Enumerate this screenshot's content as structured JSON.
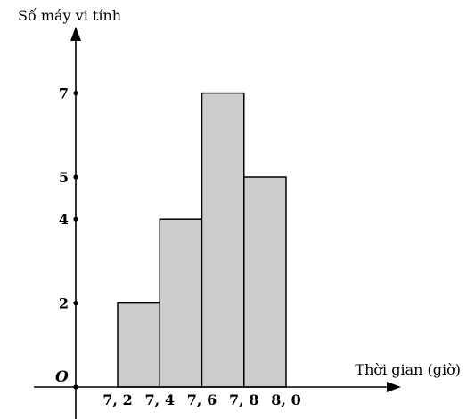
{
  "chart_data": {
    "type": "bar",
    "title": "",
    "xlabel": "Thời gian (giờ)",
    "ylabel": "Số máy vi tính",
    "origin_label": "O",
    "x_edges": [
      "7, 2",
      "7, 4",
      "7, 6",
      "7, 8",
      "8, 0"
    ],
    "bins": [
      {
        "from": 7.2,
        "to": 7.4,
        "value": 2
      },
      {
        "from": 7.4,
        "to": 7.6,
        "value": 4
      },
      {
        "from": 7.6,
        "to": 7.8,
        "value": 7
      },
      {
        "from": 7.8,
        "to": 8.0,
        "value": 5
      }
    ],
    "y_ticks": [
      2,
      4,
      5,
      7
    ],
    "ylim": [
      0,
      8
    ],
    "grid": false,
    "bar_color": "#cccccc"
  }
}
